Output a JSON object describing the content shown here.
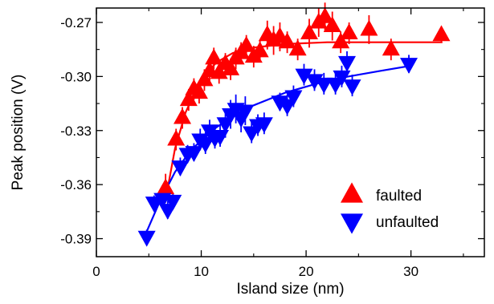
{
  "chart_data": {
    "type": "scatter",
    "xlabel": "Island size (nm)",
    "ylabel": "Peak position (V)",
    "xlim": [
      0,
      37
    ],
    "ylim": [
      -0.4,
      -0.262
    ],
    "xticks": [
      0,
      10,
      20,
      30
    ],
    "xtick_labels": [
      "0",
      "10",
      "20",
      "30"
    ],
    "yticks": [
      -0.27,
      -0.3,
      -0.33,
      -0.36,
      -0.39
    ],
    "ytick_labels": [
      "-0.27",
      "-0.30",
      "-0.33",
      "-0.36",
      "-0.39"
    ],
    "grid": false,
    "legend": "bottom-right",
    "series": [
      {
        "name": "faulted",
        "marker": "triangle-up",
        "color": "#ff0000",
        "points": [
          {
            "x": 6.6,
            "y": -0.362,
            "err": 0.008
          },
          {
            "x": 7.6,
            "y": -0.335,
            "err": 0.006
          },
          {
            "x": 8.2,
            "y": -0.323,
            "err": 0.006
          },
          {
            "x": 8.8,
            "y": -0.313,
            "err": 0.006
          },
          {
            "x": 9.3,
            "y": -0.307,
            "err": 0.006
          },
          {
            "x": 9.8,
            "y": -0.309,
            "err": 0.006
          },
          {
            "x": 10.3,
            "y": -0.302,
            "err": 0.006
          },
          {
            "x": 10.8,
            "y": -0.297,
            "err": 0.006
          },
          {
            "x": 11.2,
            "y": -0.29,
            "err": 0.006
          },
          {
            "x": 11.7,
            "y": -0.298,
            "err": 0.006
          },
          {
            "x": 12.3,
            "y": -0.293,
            "err": 0.006
          },
          {
            "x": 12.8,
            "y": -0.296,
            "err": 0.006
          },
          {
            "x": 13.3,
            "y": -0.29,
            "err": 0.006
          },
          {
            "x": 13.8,
            "y": -0.287,
            "err": 0.006
          },
          {
            "x": 14.3,
            "y": -0.283,
            "err": 0.006
          },
          {
            "x": 15.0,
            "y": -0.289,
            "err": 0.006
          },
          {
            "x": 15.6,
            "y": -0.286,
            "err": 0.006
          },
          {
            "x": 16.3,
            "y": -0.277,
            "err": 0.008
          },
          {
            "x": 16.9,
            "y": -0.28,
            "err": 0.008
          },
          {
            "x": 17.5,
            "y": -0.278,
            "err": 0.008
          },
          {
            "x": 18.2,
            "y": -0.281,
            "err": 0.006
          },
          {
            "x": 19.2,
            "y": -0.285,
            "err": 0.006
          },
          {
            "x": 20.3,
            "y": -0.276,
            "err": 0.008
          },
          {
            "x": 21.2,
            "y": -0.27,
            "err": 0.008
          },
          {
            "x": 21.8,
            "y": -0.267,
            "err": 0.008
          },
          {
            "x": 22.5,
            "y": -0.272,
            "err": 0.008
          },
          {
            "x": 23.3,
            "y": -0.281,
            "err": 0.006
          },
          {
            "x": 24.1,
            "y": -0.276,
            "err": 0.006
          },
          {
            "x": 26.0,
            "y": -0.274,
            "err": 0.008
          },
          {
            "x": 28.1,
            "y": -0.285,
            "err": 0.006
          },
          {
            "x": 32.9,
            "y": -0.277,
            "err": 0.004
          }
        ],
        "fit": [
          {
            "x": 6.8,
            "y": -0.362
          },
          {
            "x": 7.5,
            "y": -0.34
          },
          {
            "x": 8.5,
            "y": -0.32
          },
          {
            "x": 10,
            "y": -0.301
          },
          {
            "x": 11.5,
            "y": -0.292
          },
          {
            "x": 13,
            "y": -0.287
          },
          {
            "x": 15,
            "y": -0.284
          },
          {
            "x": 18,
            "y": -0.282
          },
          {
            "x": 22,
            "y": -0.281
          },
          {
            "x": 33,
            "y": -0.281
          }
        ]
      },
      {
        "name": "unfaulted",
        "marker": "triangle-down",
        "color": "#0000ff",
        "points": [
          {
            "x": 4.8,
            "y": -0.389,
            "err": 0.004
          },
          {
            "x": 5.5,
            "y": -0.37,
            "err": 0.004
          },
          {
            "x": 6.3,
            "y": -0.368,
            "err": 0.004
          },
          {
            "x": 6.8,
            "y": -0.374,
            "err": 0.005
          },
          {
            "x": 7.3,
            "y": -0.369,
            "err": 0.004
          },
          {
            "x": 8.0,
            "y": -0.35,
            "err": 0.005
          },
          {
            "x": 8.7,
            "y": -0.343,
            "err": 0.005
          },
          {
            "x": 9.3,
            "y": -0.342,
            "err": 0.005
          },
          {
            "x": 9.9,
            "y": -0.335,
            "err": 0.006
          },
          {
            "x": 10.4,
            "y": -0.337,
            "err": 0.006
          },
          {
            "x": 10.8,
            "y": -0.33,
            "err": 0.006
          },
          {
            "x": 11.3,
            "y": -0.334,
            "err": 0.006
          },
          {
            "x": 11.8,
            "y": -0.333,
            "err": 0.006
          },
          {
            "x": 12.3,
            "y": -0.326,
            "err": 0.008
          },
          {
            "x": 12.8,
            "y": -0.321,
            "err": 0.008
          },
          {
            "x": 13.3,
            "y": -0.318,
            "err": 0.008
          },
          {
            "x": 13.8,
            "y": -0.323,
            "err": 0.008
          },
          {
            "x": 14.2,
            "y": -0.319,
            "err": 0.008
          },
          {
            "x": 14.8,
            "y": -0.331,
            "err": 0.006
          },
          {
            "x": 15.4,
            "y": -0.327,
            "err": 0.006
          },
          {
            "x": 16.0,
            "y": -0.326,
            "err": 0.006
          },
          {
            "x": 17.5,
            "y": -0.314,
            "err": 0.005
          },
          {
            "x": 18.2,
            "y": -0.316,
            "err": 0.006
          },
          {
            "x": 18.8,
            "y": -0.311,
            "err": 0.006
          },
          {
            "x": 19.8,
            "y": -0.299,
            "err": 0.006
          },
          {
            "x": 20.8,
            "y": -0.302,
            "err": 0.006
          },
          {
            "x": 21.7,
            "y": -0.304,
            "err": 0.006
          },
          {
            "x": 22.8,
            "y": -0.304,
            "err": 0.006
          },
          {
            "x": 23.4,
            "y": -0.3,
            "err": 0.006
          },
          {
            "x": 23.9,
            "y": -0.292,
            "err": 0.006
          },
          {
            "x": 24.4,
            "y": -0.305,
            "err": 0.006
          },
          {
            "x": 29.8,
            "y": -0.293,
            "err": 0.005
          }
        ],
        "fit": [
          {
            "x": 4.8,
            "y": -0.386
          },
          {
            "x": 6,
            "y": -0.37
          },
          {
            "x": 7.5,
            "y": -0.353
          },
          {
            "x": 9,
            "y": -0.341
          },
          {
            "x": 11,
            "y": -0.33
          },
          {
            "x": 13,
            "y": -0.322
          },
          {
            "x": 15,
            "y": -0.316
          },
          {
            "x": 18,
            "y": -0.309
          },
          {
            "x": 21,
            "y": -0.304
          },
          {
            "x": 24,
            "y": -0.3
          },
          {
            "x": 27,
            "y": -0.297
          },
          {
            "x": 30,
            "y": -0.294
          }
        ]
      }
    ]
  }
}
